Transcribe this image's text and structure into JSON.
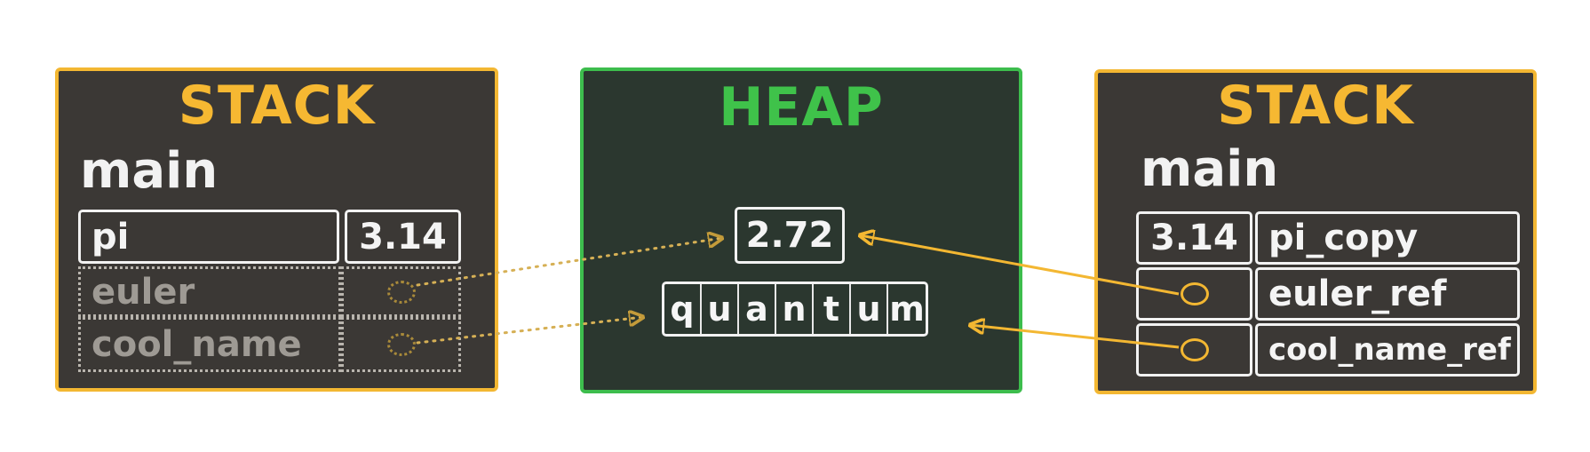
{
  "left_stack": {
    "title": "STACK",
    "frame": "main",
    "rows": [
      {
        "name": "pi",
        "value": "3.14"
      },
      {
        "name": "euler"
      },
      {
        "name": "cool_name"
      }
    ]
  },
  "heap": {
    "title": "HEAP",
    "float_value": "2.72",
    "string_chars": [
      "q",
      "u",
      "a",
      "n",
      "t",
      "u",
      "m"
    ]
  },
  "right_stack": {
    "title": "STACK",
    "frame": "main",
    "rows": [
      {
        "value": "3.14",
        "name": "pi_copy"
      },
      {
        "name": "euler_ref"
      },
      {
        "name": "cool_name_ref"
      }
    ]
  },
  "colors": {
    "stack_border": "#f3b732",
    "heap_border": "#3dbd4d",
    "stack_bg": "#3b3835",
    "heap_bg": "#2b372f",
    "pointer": "#f3b732"
  }
}
